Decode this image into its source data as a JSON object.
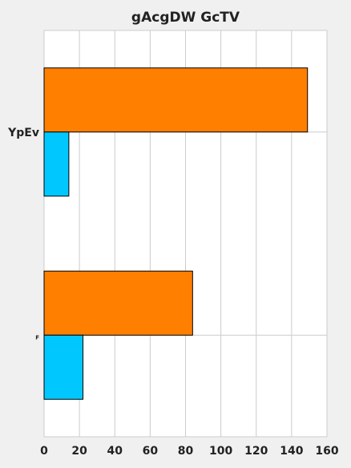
{
  "chart_data": {
    "type": "bar",
    "orientation": "horizontal",
    "title": "gAcgDW GcTV",
    "xlabel": "",
    "ylabel": "",
    "categories": [
      "YpEv",
      "F"
    ],
    "series": [
      {
        "color": "#ff7f00",
        "values": [
          149,
          84
        ]
      },
      {
        "color": "#00c8ff",
        "values": [
          14,
          22
        ]
      }
    ],
    "xlim": [
      0,
      160
    ],
    "xticks": [
      "0",
      "20",
      "40",
      "60",
      "80",
      "100",
      "120",
      "140",
      "160"
    ],
    "grid": true,
    "legend": "none",
    "background": "#f0f0f0",
    "plot_background": "#ffffff"
  }
}
